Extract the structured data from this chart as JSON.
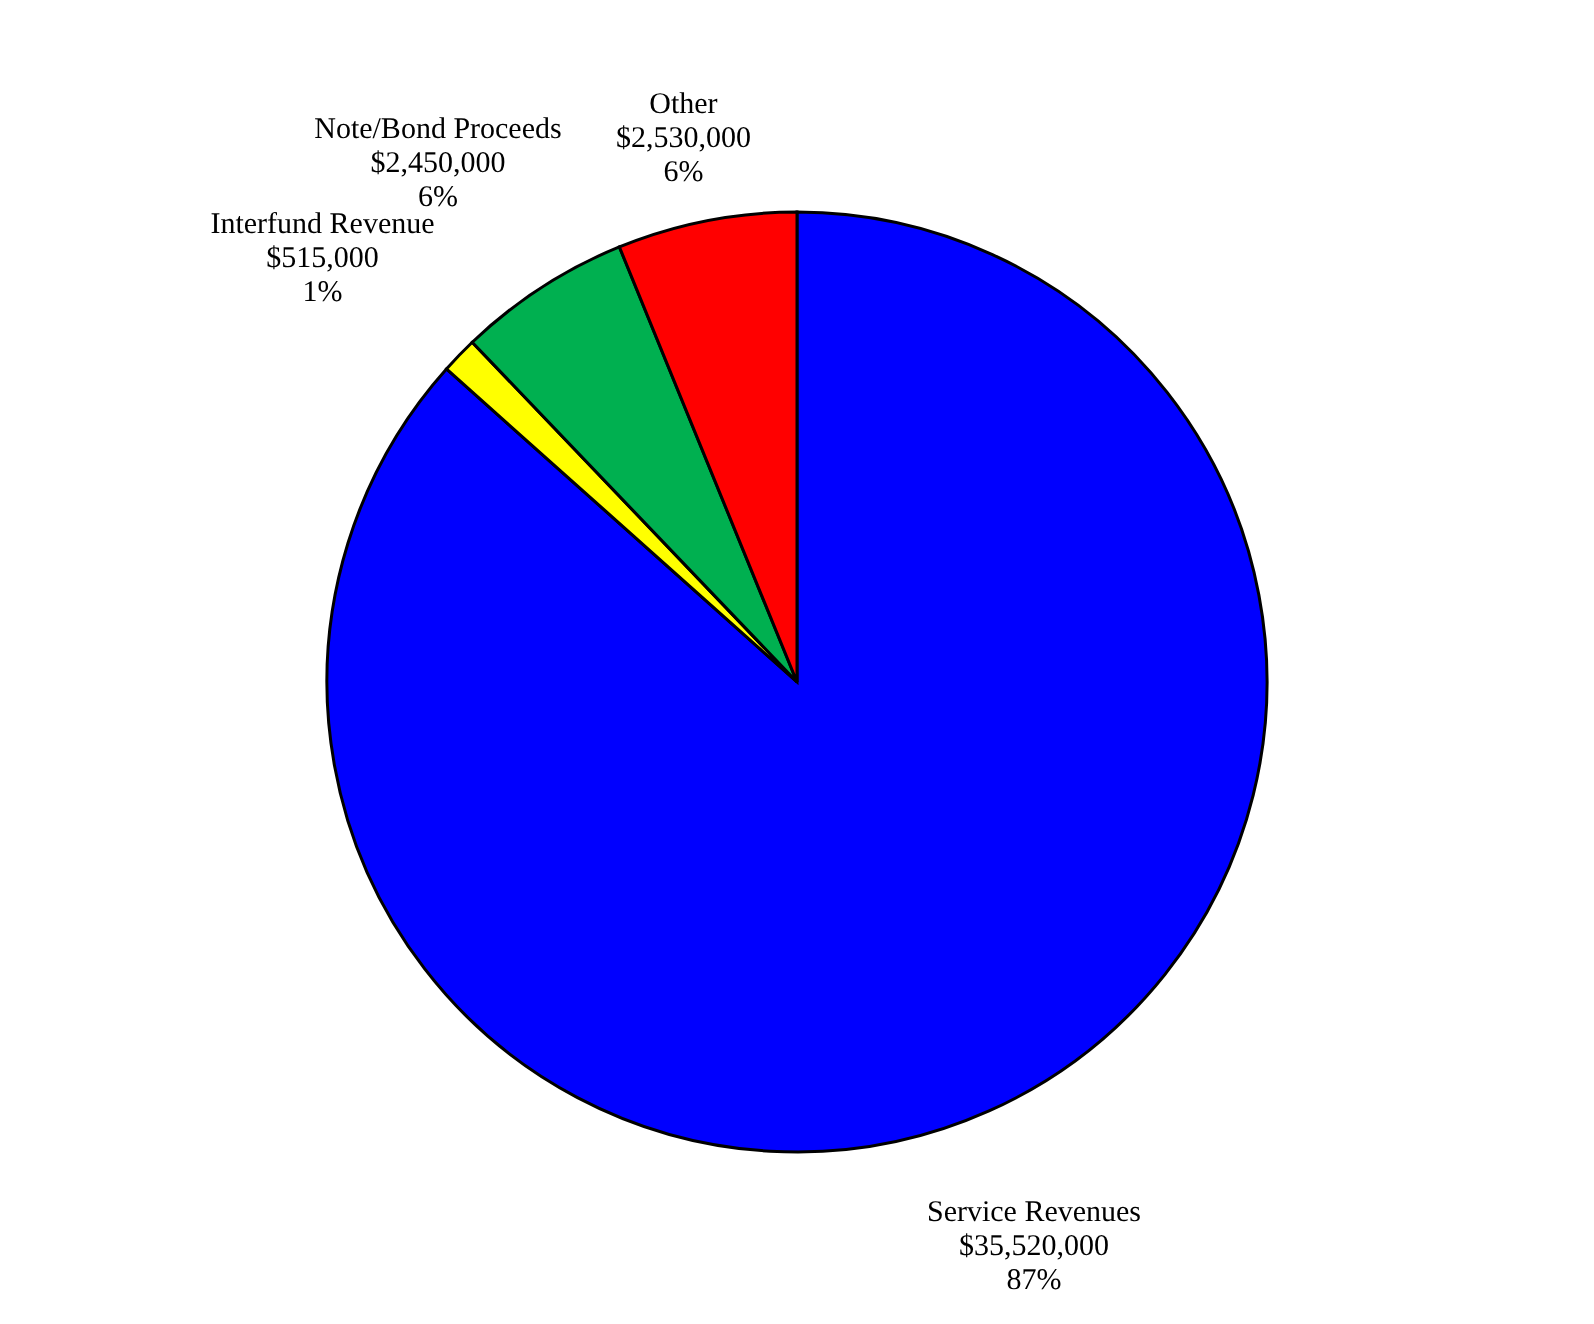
{
  "chart_data": {
    "type": "pie",
    "categories": [
      "Service Revenues",
      "Interfund Revenue",
      "Note/Bond Proceeds",
      "Other"
    ],
    "values": [
      35520000,
      515000,
      2450000,
      2530000
    ],
    "colors": [
      "#0000ff",
      "#ffff00",
      "#00b050",
      "#ff0000"
    ],
    "value_labels": [
      "$35,520,000\n87%",
      "$515,000\n1%",
      "$2,450,000\n6%",
      "$2,530,000\n6%"
    ]
  }
}
